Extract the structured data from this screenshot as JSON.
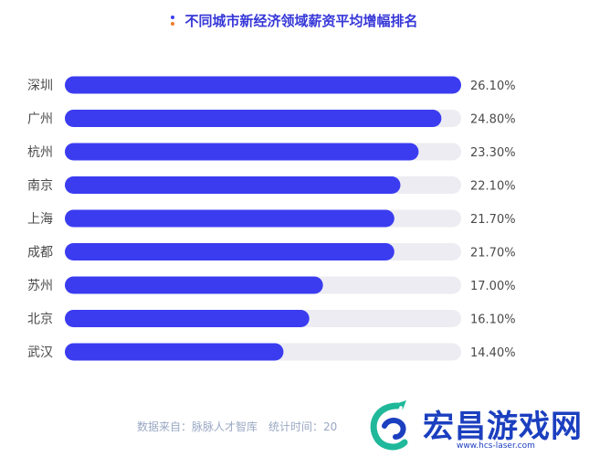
{
  "title": "不同城市新经济领域薪资平均增幅排名",
  "footer": "数据来自：脉脉人才智库　统计时间：20",
  "watermark": {
    "name": "宏昌游戏网",
    "url": "www.hcs-laser.com",
    "logo_icon": "dragon-logo-icon"
  },
  "colors": {
    "bar": "#3b3cf0",
    "track": "#ececf2",
    "title": "#3637d8",
    "labels": "#4a4a4a"
  },
  "chart_data": {
    "type": "bar",
    "orientation": "horizontal",
    "title": "不同城市新经济领域薪资平均增幅排名",
    "categories": [
      "深圳",
      "广州",
      "杭州",
      "南京",
      "上海",
      "成都",
      "苏州",
      "北京",
      "武汉"
    ],
    "values": [
      26.1,
      24.8,
      23.3,
      22.1,
      21.7,
      21.7,
      17.0,
      16.1,
      14.4
    ],
    "value_labels": [
      "26.10%",
      "24.80%",
      "23.30%",
      "22.10%",
      "21.70%",
      "21.70%",
      "17.00%",
      "16.10%",
      "14.40%"
    ],
    "unit": "%",
    "xlim": [
      0,
      26.1
    ],
    "grid": false,
    "legend": "none"
  }
}
